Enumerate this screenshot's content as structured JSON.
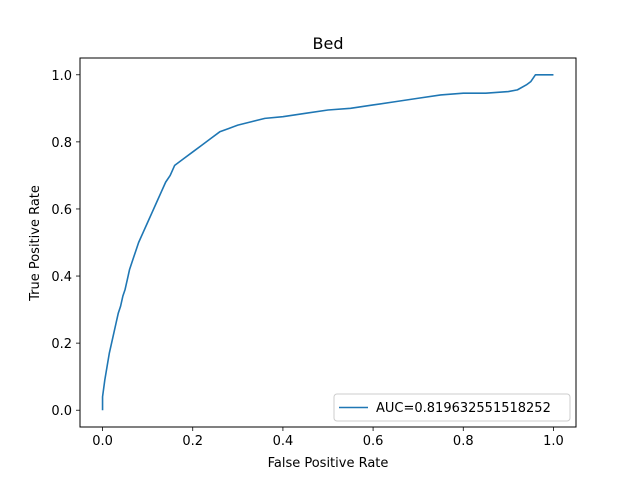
{
  "chart_data": {
    "type": "line",
    "title": "Bed",
    "xlabel": "False Positive Rate",
    "ylabel": "True Positive Rate",
    "xlim": [
      -0.05,
      1.05
    ],
    "ylim": [
      -0.05,
      1.05
    ],
    "x_ticks": [
      0.0,
      0.2,
      0.4,
      0.6,
      0.8,
      1.0
    ],
    "y_ticks": [
      0.0,
      0.2,
      0.4,
      0.6,
      0.8,
      1.0
    ],
    "x_tick_labels": [
      "0.0",
      "0.2",
      "0.4",
      "0.6",
      "0.8",
      "1.0"
    ],
    "y_tick_labels": [
      "0.0",
      "0.2",
      "0.4",
      "0.6",
      "0.8",
      "1.0"
    ],
    "grid": false,
    "legend_position": "lower-right",
    "series": [
      {
        "name": "AUC=0.819632551518252",
        "color": "#1f77b4",
        "x": [
          0.0,
          0.0,
          0.005,
          0.01,
          0.015,
          0.02,
          0.025,
          0.03,
          0.035,
          0.04,
          0.045,
          0.05,
          0.055,
          0.06,
          0.065,
          0.07,
          0.075,
          0.08,
          0.09,
          0.1,
          0.11,
          0.12,
          0.13,
          0.14,
          0.15,
          0.16,
          0.18,
          0.2,
          0.22,
          0.24,
          0.26,
          0.28,
          0.3,
          0.33,
          0.36,
          0.4,
          0.45,
          0.5,
          0.55,
          0.6,
          0.65,
          0.7,
          0.75,
          0.8,
          0.85,
          0.9,
          0.92,
          0.94,
          0.95,
          0.96,
          1.0
        ],
        "y": [
          0.0,
          0.04,
          0.09,
          0.13,
          0.17,
          0.2,
          0.23,
          0.26,
          0.29,
          0.31,
          0.34,
          0.36,
          0.39,
          0.42,
          0.44,
          0.46,
          0.48,
          0.5,
          0.53,
          0.56,
          0.59,
          0.62,
          0.65,
          0.68,
          0.7,
          0.73,
          0.75,
          0.77,
          0.79,
          0.81,
          0.83,
          0.84,
          0.85,
          0.86,
          0.87,
          0.875,
          0.885,
          0.895,
          0.9,
          0.91,
          0.92,
          0.93,
          0.94,
          0.945,
          0.945,
          0.95,
          0.955,
          0.97,
          0.98,
          1.0,
          1.0
        ]
      }
    ]
  }
}
